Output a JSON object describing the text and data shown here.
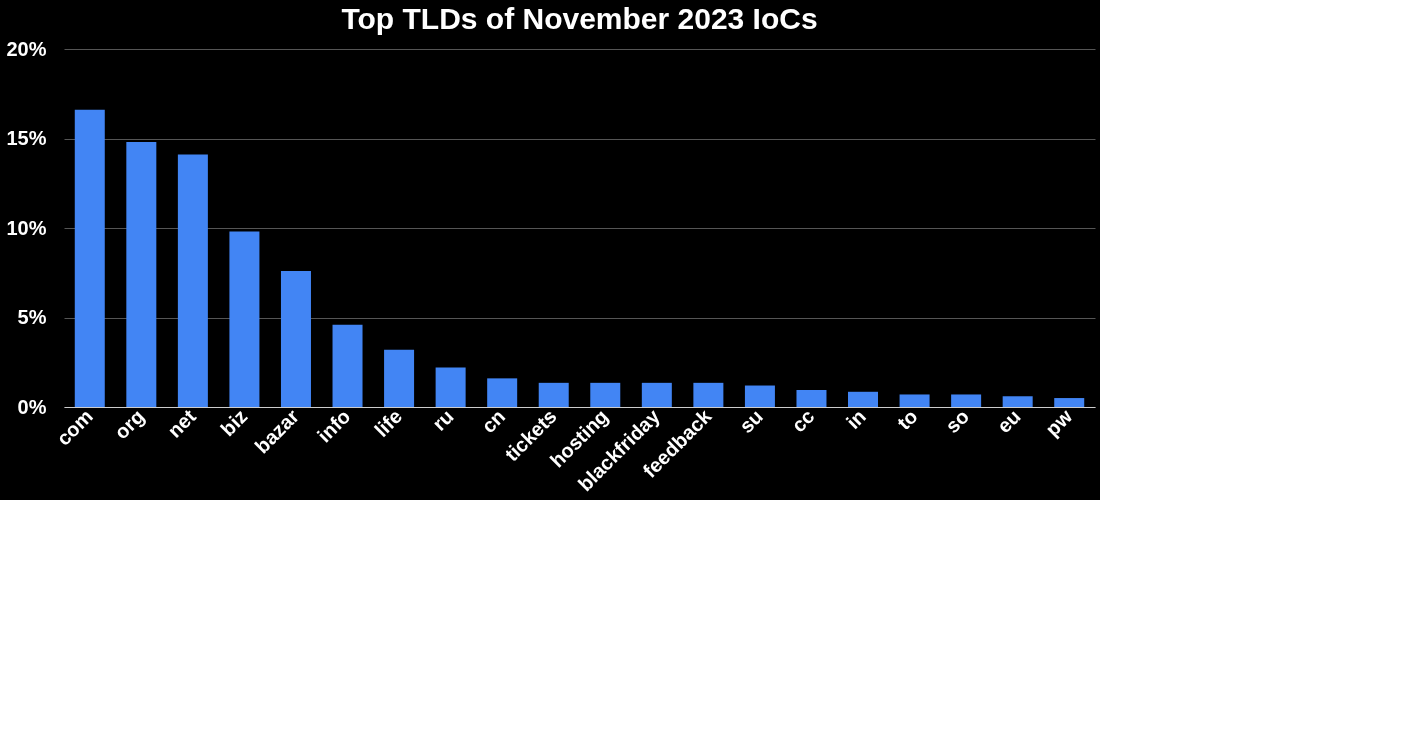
{
  "chart_data": {
    "type": "bar",
    "title": "Top TLDs of November 2023 IoCs",
    "categories": [
      "com",
      "org",
      "net",
      "biz",
      "bazar",
      "info",
      "life",
      "ru",
      "cn",
      "tickets",
      "hosting",
      "blackfriday",
      "feedback",
      "su",
      "cc",
      "in",
      "to",
      "so",
      "eu",
      "pw"
    ],
    "values": [
      16.6,
      14.8,
      14.1,
      9.8,
      7.6,
      4.6,
      3.2,
      2.2,
      1.6,
      1.35,
      1.35,
      1.35,
      1.35,
      1.2,
      0.95,
      0.85,
      0.7,
      0.7,
      0.6,
      0.5
    ],
    "color": "#4285f4",
    "ylim": [
      0,
      20
    ],
    "yticks": [
      {
        "value": 0,
        "label": "0%"
      },
      {
        "value": 5,
        "label": "5%"
      },
      {
        "value": 10,
        "label": "10%"
      },
      {
        "value": 15,
        "label": "15%"
      },
      {
        "value": 20,
        "label": "20%"
      }
    ],
    "grid": "y"
  }
}
